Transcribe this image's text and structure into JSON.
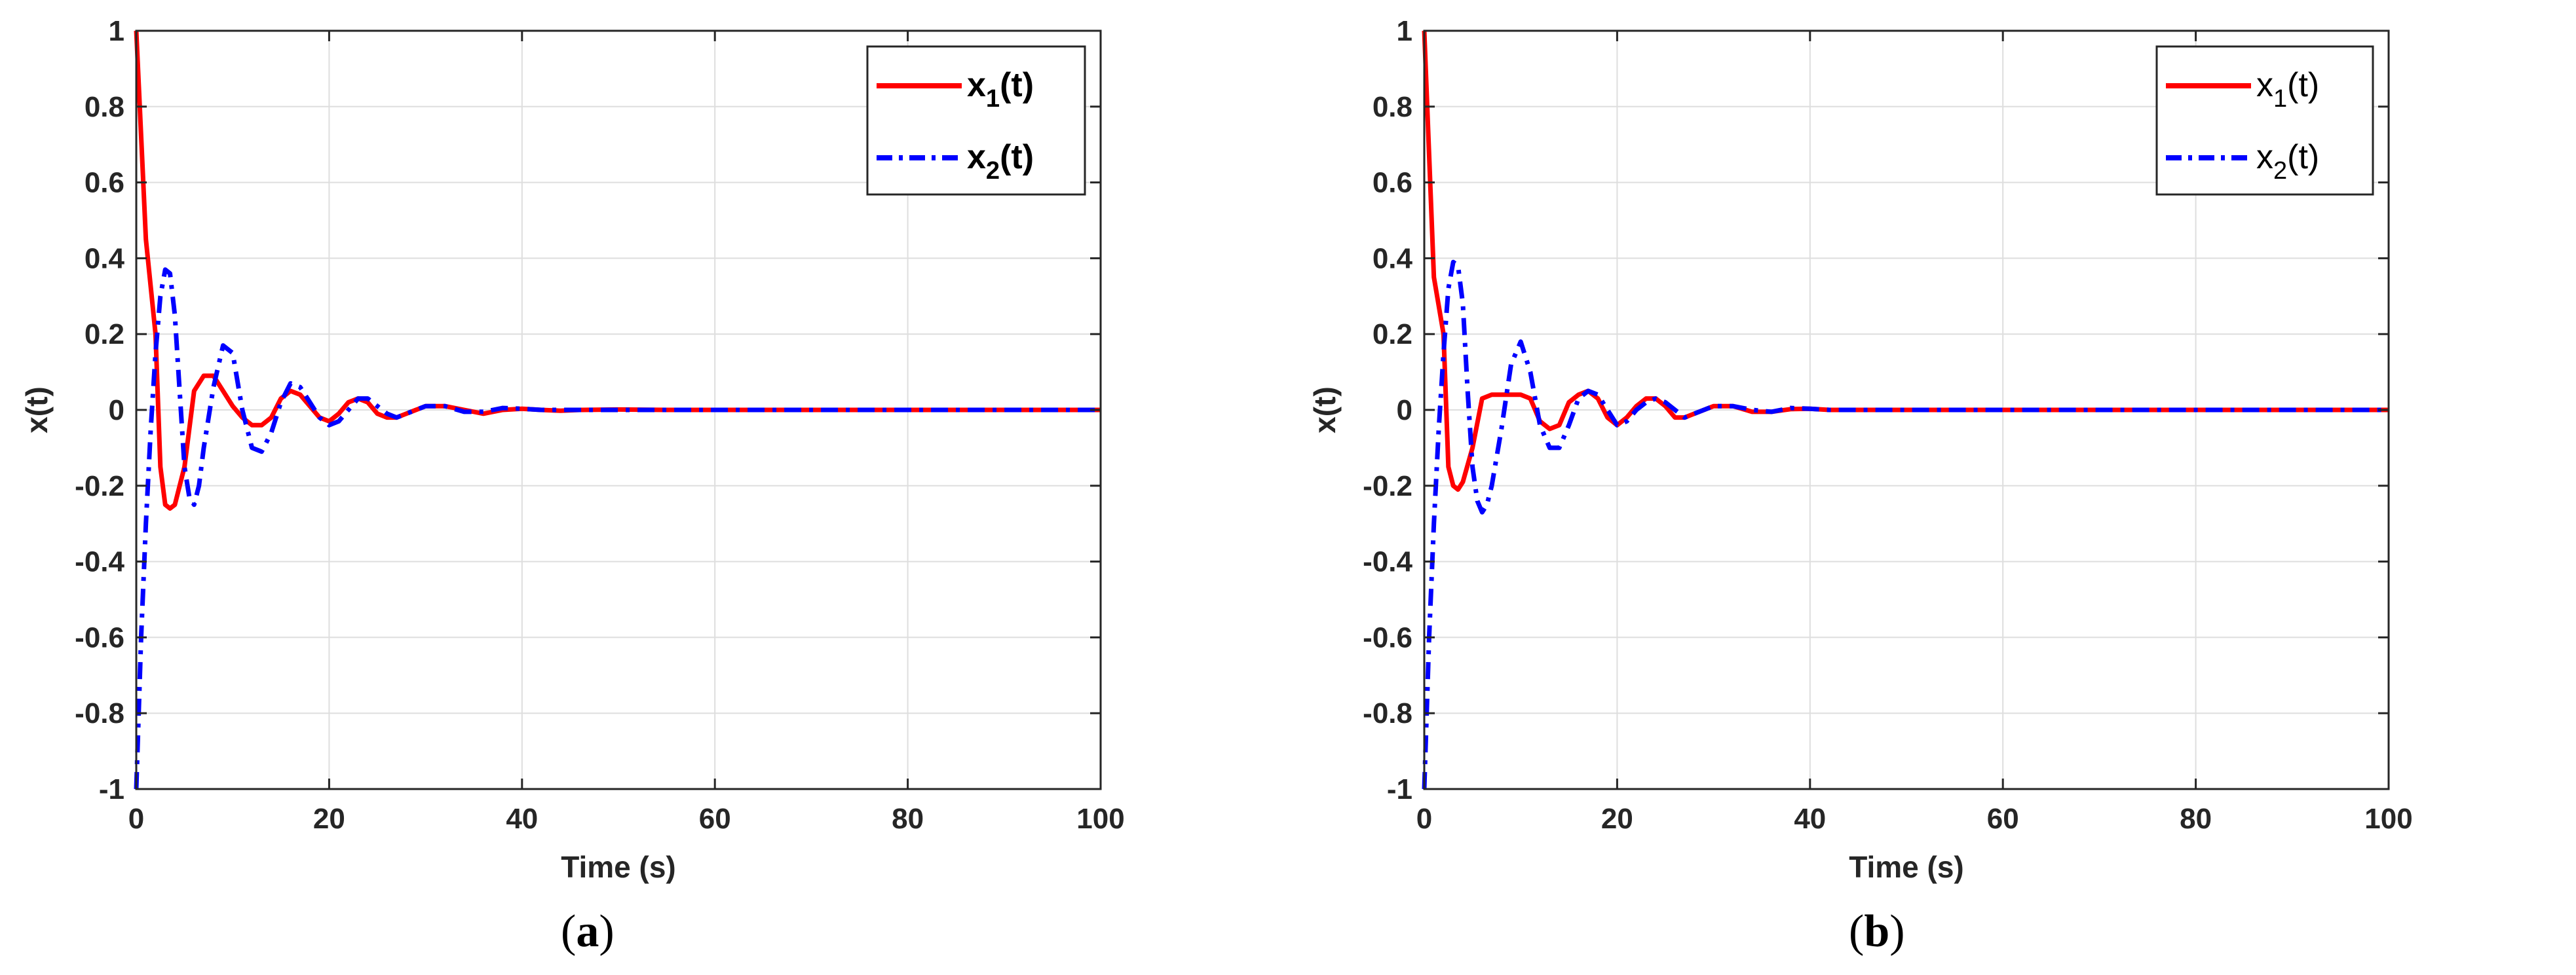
{
  "chart_data": [
    {
      "type": "line",
      "panel_label": "a",
      "xlabel": "Time (s)",
      "ylabel": "x(t)",
      "xlim": [
        0,
        100
      ],
      "ylim": [
        -1,
        1
      ],
      "xticks": [
        0,
        20,
        40,
        60,
        80,
        100
      ],
      "xtick_labels": [
        "0",
        "20",
        "40",
        "60",
        "80",
        "100"
      ],
      "yticks": [
        1,
        0.8,
        0.6,
        0.4,
        0.2,
        0,
        -0.2,
        -0.4,
        -0.6,
        -0.8,
        -1
      ],
      "ytick_labels": [
        "1",
        "0.8",
        "0.6",
        "0.4",
        "0.2",
        "0",
        "-0.2",
        "-0.4",
        "-0.6",
        "-0.8",
        "-1"
      ],
      "grid": true,
      "legend_position": "top-right",
      "legend_bold": true,
      "series": [
        {
          "name": "x1(t)",
          "label_base": "x",
          "label_sub": "1",
          "label_tail": "(t)",
          "color": "#ff0000",
          "style": "solid",
          "x": [
            0,
            1,
            2,
            2.5,
            3,
            3.5,
            4,
            5,
            6,
            7,
            8,
            9,
            10,
            11,
            12,
            13,
            14,
            15,
            16,
            17,
            18,
            19,
            20,
            21,
            22,
            23,
            24,
            25,
            26,
            27,
            28,
            30,
            32,
            34,
            36,
            38,
            40,
            42,
            44,
            46,
            50,
            55,
            60,
            70,
            80,
            90,
            100
          ],
          "y": [
            1,
            0.45,
            0.2,
            -0.15,
            -0.25,
            -0.26,
            -0.25,
            -0.15,
            0.05,
            0.09,
            0.09,
            0.05,
            0.01,
            -0.02,
            -0.04,
            -0.04,
            -0.02,
            0.03,
            0.05,
            0.04,
            0.01,
            -0.02,
            -0.03,
            -0.01,
            0.02,
            0.03,
            0.02,
            -0.01,
            -0.02,
            -0.02,
            -0.01,
            0.01,
            0.01,
            0.0,
            -0.01,
            0.0,
            0.003,
            0.0,
            -0.002,
            0.0,
            0.001,
            0.0,
            0.0,
            0.0,
            0.0,
            0.0,
            0.0
          ]
        },
        {
          "name": "x2(t)",
          "label_base": "x",
          "label_sub": "2",
          "label_tail": "(t)",
          "color": "#0000ff",
          "style": "dashdot",
          "x": [
            0,
            0.5,
            1,
            1.5,
            2,
            2.5,
            3,
            3.5,
            4,
            4.5,
            5,
            5.5,
            6,
            6.5,
            7,
            8,
            9,
            10,
            11,
            12,
            13,
            14,
            15,
            16,
            17,
            18,
            19,
            20,
            21,
            22,
            23,
            24,
            25,
            26,
            27,
            28,
            30,
            32,
            34,
            36,
            38,
            40,
            42,
            44,
            46,
            50,
            55,
            60,
            70,
            80,
            90,
            100
          ],
          "y": [
            -1,
            -0.6,
            -0.3,
            -0.05,
            0.15,
            0.3,
            0.37,
            0.36,
            0.25,
            0.05,
            -0.15,
            -0.23,
            -0.25,
            -0.2,
            -0.1,
            0.06,
            0.17,
            0.15,
            0.0,
            -0.1,
            -0.11,
            -0.06,
            0.02,
            0.07,
            0.06,
            0.02,
            -0.02,
            -0.04,
            -0.03,
            0.0,
            0.03,
            0.03,
            0.01,
            -0.01,
            -0.02,
            -0.01,
            0.01,
            0.01,
            -0.005,
            -0.005,
            0.005,
            0.003,
            0.0,
            0.0,
            0.0,
            0.0,
            0.0,
            0.0,
            0.0,
            0.0,
            0.0,
            0.0
          ]
        }
      ]
    },
    {
      "type": "line",
      "panel_label": "b",
      "xlabel": "Time (s)",
      "ylabel": "x(t)",
      "xlim": [
        0,
        100
      ],
      "ylim": [
        -1,
        1
      ],
      "xticks": [
        0,
        20,
        40,
        60,
        80,
        100
      ],
      "xtick_labels": [
        "0",
        "20",
        "40",
        "60",
        "80",
        "100"
      ],
      "yticks": [
        1,
        0.8,
        0.6,
        0.4,
        0.2,
        0,
        -0.2,
        -0.4,
        -0.6,
        -0.8,
        -1
      ],
      "ytick_labels": [
        "1",
        "0.8",
        "0.6",
        "0.4",
        "0.2",
        "0",
        "-0.2",
        "-0.4",
        "-0.6",
        "-0.8",
        "-1"
      ],
      "grid": true,
      "legend_position": "top-right",
      "legend_bold": false,
      "series": [
        {
          "name": "x1(t)",
          "label_base": "x",
          "label_sub": "1",
          "label_tail": "(t)",
          "color": "#ff0000",
          "style": "solid",
          "x": [
            0,
            1,
            2,
            2.5,
            3,
            3.5,
            4,
            5,
            6,
            7,
            8,
            9,
            10,
            11,
            12,
            13,
            14,
            15,
            16,
            17,
            18,
            19,
            20,
            21,
            22,
            23,
            24,
            25,
            26,
            27,
            28,
            30,
            32,
            34,
            36,
            38,
            40,
            42,
            44,
            46,
            50,
            55,
            60,
            70,
            80,
            90,
            100
          ],
          "y": [
            1,
            0.35,
            0.2,
            -0.15,
            -0.2,
            -0.21,
            -0.19,
            -0.1,
            0.03,
            0.04,
            0.04,
            0.04,
            0.04,
            0.03,
            -0.03,
            -0.05,
            -0.04,
            0.02,
            0.04,
            0.05,
            0.03,
            -0.02,
            -0.04,
            -0.02,
            0.01,
            0.03,
            0.03,
            0.01,
            -0.02,
            -0.02,
            -0.01,
            0.01,
            0.01,
            -0.005,
            -0.005,
            0.002,
            0.003,
            0.0,
            0.0,
            0.0,
            0.0,
            0.0,
            0.0,
            0.0,
            0.0,
            0.0,
            0.0
          ]
        },
        {
          "name": "x2(t)",
          "label_base": "x",
          "label_sub": "2",
          "label_tail": "(t)",
          "color": "#0000ff",
          "style": "dashdot",
          "x": [
            0,
            0.5,
            1,
            1.5,
            2,
            2.5,
            3,
            3.5,
            4,
            4.5,
            5,
            5.5,
            6,
            6.5,
            7,
            8,
            9,
            10,
            11,
            12,
            13,
            14,
            15,
            16,
            17,
            18,
            19,
            20,
            21,
            22,
            23,
            24,
            25,
            26,
            27,
            28,
            30,
            32,
            34,
            36,
            38,
            40,
            42,
            44,
            46,
            50,
            55,
            60,
            70,
            80,
            90,
            100
          ],
          "y": [
            -1,
            -0.6,
            -0.3,
            -0.05,
            0.15,
            0.32,
            0.39,
            0.38,
            0.28,
            0.05,
            -0.15,
            -0.24,
            -0.27,
            -0.25,
            -0.2,
            -0.05,
            0.12,
            0.18,
            0.1,
            -0.04,
            -0.1,
            -0.1,
            -0.04,
            0.03,
            0.05,
            0.04,
            0.0,
            -0.04,
            -0.03,
            0.0,
            0.02,
            0.03,
            0.02,
            0.0,
            -0.02,
            -0.01,
            0.01,
            0.01,
            0.0,
            -0.005,
            0.005,
            0.003,
            0.0,
            0.0,
            0.0,
            0.0,
            0.0,
            0.0,
            0.0,
            0.0,
            0.0,
            0.0
          ]
        }
      ]
    }
  ]
}
